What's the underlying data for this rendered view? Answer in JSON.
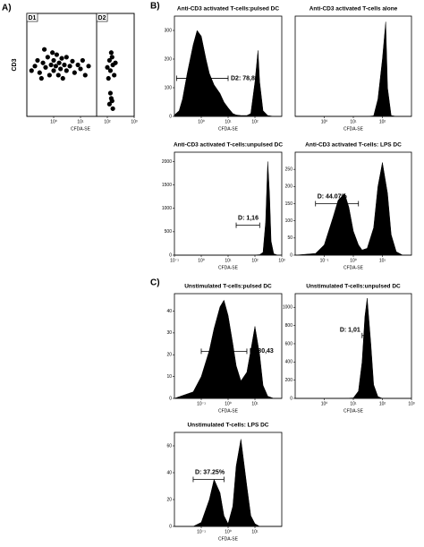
{
  "figure": {
    "panel_labels": [
      "A)",
      "B)",
      "C)"
    ]
  },
  "chart_data": [
    {
      "type": "scatter",
      "xlabel": "CFDA-SE",
      "ylabel": "CD3",
      "log_x": true,
      "log_y": true,
      "xlim": [
        0.1,
        1000
      ],
      "ylim": [
        1,
        10000
      ],
      "xticks": [
        {
          "value": 1,
          "label": "10⁰"
        },
        {
          "value": 10,
          "label": "10¹"
        },
        {
          "value": 100,
          "label": "10²"
        },
        {
          "value": 1000,
          "label": "10³"
        }
      ],
      "color": "#000000",
      "x": [
        0.3,
        0.4,
        0.5,
        0.6,
        0.7,
        0.8,
        0.9,
        1,
        1,
        1.2,
        1.3,
        1.5,
        1.6,
        1.8,
        2,
        2.2,
        2.5,
        3,
        3,
        4,
        5,
        6,
        8,
        10,
        0.2,
        0.25,
        0.35,
        0.45,
        0.15,
        12,
        15,
        20,
        100,
        120,
        130,
        150,
        160,
        180,
        200,
        140,
        110,
        120,
        140,
        160,
        130,
        150
      ],
      "values": [
        50,
        120,
        80,
        200,
        40,
        100,
        300,
        60,
        150,
        90,
        250,
        40,
        120,
        70,
        180,
        30,
        100,
        60,
        200,
        90,
        140,
        50,
        100,
        70,
        90,
        150,
        30,
        400,
        60,
        150,
        40,
        90,
        80,
        150,
        60,
        200,
        100,
        40,
        120,
        300,
        30,
        3,
        5,
        2,
        8,
        4
      ],
      "gates": [
        {
          "label": "D1",
          "range": [
            0.1,
            40
          ]
        },
        {
          "label": "D2",
          "range": [
            40,
            1000
          ]
        }
      ]
    },
    {
      "type": "area",
      "title": "Anti-CD3 activated T-cells:pulsed DC",
      "xlabel": "CFDA-SE",
      "log_x": true,
      "color": "#000000",
      "xlim": [
        0.1,
        1000
      ],
      "ylim": [
        0,
        350
      ],
      "yticks": [
        0,
        100,
        200,
        300
      ],
      "xticks": [
        {
          "value": 1,
          "label": "10⁰"
        },
        {
          "value": 10,
          "label": "10¹"
        },
        {
          "value": 100,
          "label": "10²"
        }
      ],
      "x": [
        0.1,
        0.15,
        0.2,
        0.3,
        0.5,
        0.7,
        1,
        1.5,
        2,
        3,
        5,
        7,
        10,
        15,
        20,
        30,
        50,
        70,
        100,
        130,
        150,
        200,
        300,
        500,
        1000
      ],
      "values": [
        5,
        20,
        60,
        150,
        250,
        300,
        280,
        200,
        150,
        110,
        80,
        50,
        30,
        10,
        5,
        3,
        3,
        10,
        120,
        230,
        120,
        20,
        3,
        0,
        0
      ],
      "gate": [
        0.12,
        10
      ],
      "gate_label": "D2: 78,89"
    },
    {
      "type": "area",
      "title": "Anti-CD3 activated T-cells alone",
      "xlabel": "CFDA-SE",
      "log_x": true,
      "color": "#000000",
      "xlim": [
        0.1,
        1000
      ],
      "ylim": [
        0,
        350
      ],
      "xticks": [
        {
          "value": 1,
          "label": "10⁰"
        },
        {
          "value": 10,
          "label": "10¹"
        },
        {
          "value": 100,
          "label": "10²"
        }
      ],
      "x": [
        0.1,
        0.15,
        0.2,
        0.3,
        0.5,
        0.7,
        1,
        1.5,
        2,
        3,
        5,
        7,
        10,
        15,
        20,
        30,
        50,
        70,
        100,
        130,
        150,
        200,
        300,
        500,
        1000
      ],
      "values": [
        0,
        0,
        0,
        0,
        0,
        0,
        0,
        0,
        0,
        0,
        0,
        0,
        0,
        0,
        0,
        0,
        2,
        60,
        200,
        330,
        100,
        3,
        0,
        0,
        0
      ]
    },
    {
      "type": "area",
      "title": "Anti-CD3 activated T-cells:unpulsed DC",
      "xlabel": "CFDA-SE",
      "log_x": true,
      "color": "#000000",
      "xlim": [
        0.1,
        1000
      ],
      "ylim": [
        0,
        2200
      ],
      "yticks": [
        0,
        500,
        1000,
        1500,
        2000
      ],
      "xticks": [
        {
          "value": 0.1,
          "label": "10⁻¹"
        },
        {
          "value": 1,
          "label": "10⁰"
        },
        {
          "value": 10,
          "label": "10¹"
        },
        {
          "value": 100,
          "label": "10²"
        },
        {
          "value": 1000,
          "label": "10³"
        }
      ],
      "x": [
        0.1,
        1,
        10,
        50,
        100,
        150,
        200,
        250,
        300,
        350,
        400,
        500,
        700,
        1000
      ],
      "values": [
        0,
        0,
        0,
        0,
        3,
        10,
        60,
        700,
        2000,
        1300,
        300,
        30,
        0,
        0
      ],
      "gate": [
        20,
        150
      ],
      "gate_label": "D: 1,16"
    },
    {
      "type": "area",
      "title": "Anti-CD3 activated T-cells: LPS DC",
      "xlabel": "CFDA-SE",
      "log_x": true,
      "color": "#000000",
      "xlim": [
        0.01,
        100
      ],
      "ylim": [
        0,
        300
      ],
      "yticks": [
        0,
        50,
        100,
        150,
        200,
        250
      ],
      "xticks": [
        {
          "value": 0.1,
          "label": "10⁻¹"
        },
        {
          "value": 1,
          "label": "10⁰"
        },
        {
          "value": 10,
          "label": "10¹"
        }
      ],
      "x": [
        0.01,
        0.05,
        0.1,
        0.2,
        0.3,
        0.5,
        0.7,
        1,
        1.5,
        2,
        3,
        5,
        7,
        10,
        15,
        20,
        30,
        50,
        100
      ],
      "values": [
        0,
        5,
        30,
        110,
        160,
        180,
        140,
        70,
        30,
        15,
        20,
        80,
        200,
        270,
        180,
        60,
        10,
        0,
        0
      ],
      "gate": [
        0.05,
        1.5
      ],
      "gate_label": "D: 44.07%"
    },
    {
      "type": "area",
      "title": "Unstimulated T-cells:pulsed DC",
      "xlabel": "CFDA-SE",
      "log_x": true,
      "color": "#000000",
      "xlim": [
        0.01,
        100
      ],
      "ylim": [
        0,
        48
      ],
      "yticks": [
        0,
        10,
        20,
        30,
        40
      ],
      "xticks": [
        {
          "value": 0.1,
          "label": "10⁻¹"
        },
        {
          "value": 1,
          "label": "10⁰"
        },
        {
          "value": 10,
          "label": "10¹"
        }
      ],
      "x": [
        0.01,
        0.05,
        0.1,
        0.2,
        0.3,
        0.5,
        0.7,
        1,
        1.5,
        2,
        3,
        5,
        7,
        10,
        15,
        20,
        30,
        50,
        100
      ],
      "values": [
        0,
        3,
        10,
        22,
        32,
        42,
        45,
        38,
        25,
        15,
        8,
        12,
        22,
        33,
        20,
        6,
        1,
        0,
        0
      ],
      "gate": [
        0.1,
        5
      ],
      "gate_label": "D: 80,43"
    },
    {
      "type": "area",
      "title": "Unstimulated T-cells:unpulsed DC",
      "xlabel": "CFDA-SE",
      "log_x": true,
      "color": "#000000",
      "xlim": [
        0.1,
        1000
      ],
      "ylim": [
        0,
        1150
      ],
      "yticks": [
        0,
        200,
        400,
        600,
        800,
        1000
      ],
      "xticks": [
        {
          "value": 1,
          "label": "10⁰"
        },
        {
          "value": 10,
          "label": "10¹"
        },
        {
          "value": 100,
          "label": "10²"
        },
        {
          "value": 1000,
          "label": "10³"
        }
      ],
      "x": [
        0.1,
        1,
        5,
        10,
        15,
        20,
        25,
        30,
        40,
        50,
        70,
        100,
        1000
      ],
      "values": [
        0,
        0,
        0,
        5,
        80,
        400,
        900,
        1100,
        600,
        150,
        20,
        0,
        0
      ],
      "gate": [
        20,
        35
      ],
      "gate_label": "D: 1,01"
    },
    {
      "type": "area",
      "title": "Unstimulated T-cells: LPS DC",
      "xlabel": "CFDA-SE",
      "log_x": true,
      "color": "#000000",
      "xlim": [
        0.01,
        100
      ],
      "ylim": [
        0,
        70
      ],
      "yticks": [
        0,
        20,
        40,
        60
      ],
      "xticks": [
        {
          "value": 0.1,
          "label": "10⁻¹"
        },
        {
          "value": 1,
          "label": "10⁰"
        },
        {
          "value": 10,
          "label": "10¹"
        }
      ],
      "x": [
        0.01,
        0.05,
        0.1,
        0.2,
        0.3,
        0.5,
        0.7,
        1,
        1.5,
        2,
        3,
        5,
        7,
        10,
        15,
        20,
        30,
        50,
        100
      ],
      "values": [
        0,
        0,
        3,
        20,
        35,
        25,
        8,
        2,
        15,
        45,
        65,
        30,
        8,
        2,
        0,
        0,
        0,
        0,
        0
      ],
      "gate": [
        0.05,
        0.7
      ],
      "gate_label": "D: 37.25%"
    }
  ]
}
